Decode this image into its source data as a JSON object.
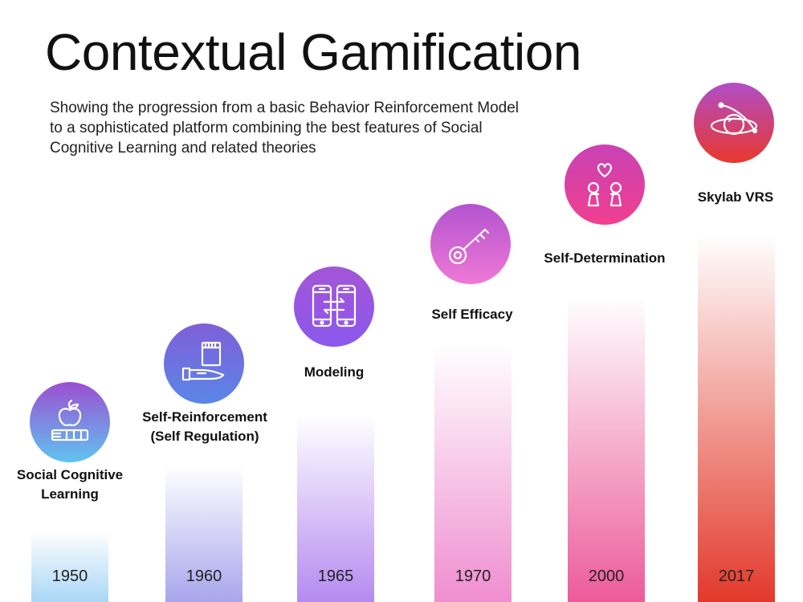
{
  "title": "Contextual Gamification",
  "subtitle": "Showing the progression from a basic Behavior Reinforcement Model to a sophisticated platform combining the best features of Social Cognitive Learning and related theories",
  "stages": [
    {
      "label_line1": "Social Cognitive",
      "label_line2": "Learning",
      "year": "1950",
      "icon": "apple-books-icon",
      "bar_color": "#a9d6f5",
      "circle_top": "#9b4fd1",
      "circle_bottom": "#5fc4f0"
    },
    {
      "label_line1": "Self-Reinforcement",
      "label_line2": "(Self Regulation)",
      "year": "1960",
      "icon": "hand-notepad-icon",
      "bar_color": "#a8a6ec",
      "circle_top": "#7f5fd8",
      "circle_bottom": "#5a86e8"
    },
    {
      "label_line1": "Modeling",
      "label_line2": "",
      "year": "1965",
      "icon": "phones-exchange-icon",
      "bar_color": "#b58af0",
      "circle_top": "#a355d6",
      "circle_bottom": "#8b58ee"
    },
    {
      "label_line1": "Self Efficacy",
      "label_line2": "",
      "year": "1970",
      "icon": "key-icon",
      "bar_color": "#ef8ed0",
      "circle_top": "#b354cf",
      "circle_bottom": "#ef78d6"
    },
    {
      "label_line1": "Self-Determination",
      "label_line2": "",
      "year": "2000",
      "icon": "heart-people-icon",
      "bar_color": "#ec5b9a",
      "circle_top": "#c842b5",
      "circle_bottom": "#f03f8f"
    },
    {
      "label_line1": "Skylab VRS",
      "label_line2": "",
      "year": "2017",
      "icon": "orbit-planet-icon",
      "bar_color": "#e2392b",
      "circle_top": "#b04ec8",
      "circle_bottom": "#e8382c"
    }
  ]
}
